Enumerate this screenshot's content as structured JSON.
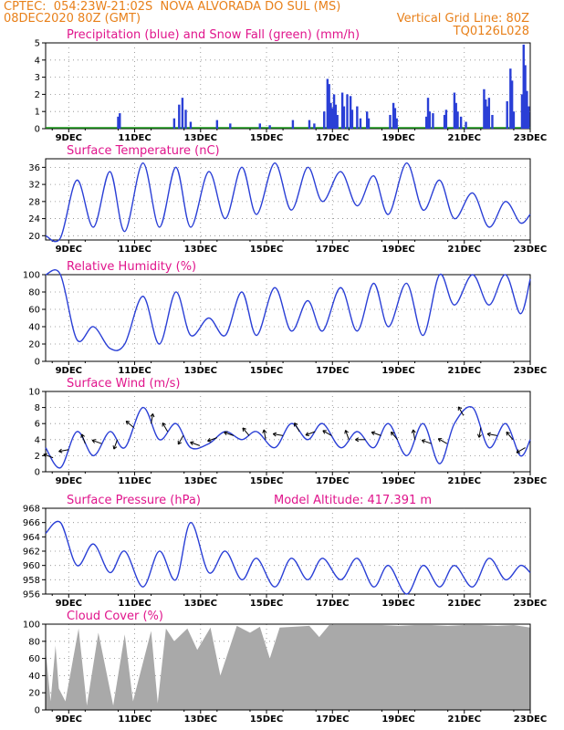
{
  "header": {
    "line1_left": "CPTEC:  054:23W-21:02S  NOVA ALVORADA DO SUL (MS)",
    "line2_left": "08DEC2020 80Z (GMT)",
    "line2_right": "Vertical Grid Line: 80Z",
    "line3_right": "TQ0126L028"
  },
  "colors": {
    "header": "#e8801a",
    "title": "#e0158c",
    "line": "#2a3fd6",
    "snow": "#1a9a1a",
    "cloud": "#a9a9a9",
    "grid": "#888888"
  },
  "chart_data": [
    {
      "type": "bar",
      "title": "Precipitation (blue) and Snow Fall (green) (mm/h)",
      "x_ticks": [
        "9DEC",
        "11DEC",
        "13DEC",
        "15DEC",
        "17DEC",
        "19DEC",
        "21DEC",
        "23DEC"
      ],
      "ylim": [
        0,
        5
      ],
      "y_ticks": [
        0,
        1,
        2,
        3,
        4,
        5
      ],
      "series": [
        {
          "name": "Precipitation",
          "values": [
            [
              10.5,
              0.7
            ],
            [
              10.55,
              0.9
            ],
            [
              12.2,
              0.6
            ],
            [
              12.35,
              1.4
            ],
            [
              12.45,
              1.8
            ],
            [
              12.55,
              1.1
            ],
            [
              12.7,
              0.4
            ],
            [
              13.5,
              0.5
            ],
            [
              13.9,
              0.3
            ],
            [
              14.8,
              0.3
            ],
            [
              15.1,
              0.2
            ],
            [
              15.8,
              0.5
            ],
            [
              16.3,
              0.5
            ],
            [
              16.45,
              0.3
            ],
            [
              16.75,
              1.0
            ],
            [
              16.85,
              2.9
            ],
            [
              16.9,
              2.6
            ],
            [
              16.95,
              1.5
            ],
            [
              17.0,
              1.2
            ],
            [
              17.05,
              2.0
            ],
            [
              17.1,
              1.4
            ],
            [
              17.15,
              0.8
            ],
            [
              17.3,
              2.1
            ],
            [
              17.35,
              1.3
            ],
            [
              17.45,
              2.0
            ],
            [
              17.55,
              1.9
            ],
            [
              17.6,
              1.1
            ],
            [
              17.75,
              1.3
            ],
            [
              17.85,
              0.6
            ],
            [
              18.05,
              1.0
            ],
            [
              18.1,
              0.6
            ],
            [
              18.75,
              0.8
            ],
            [
              18.85,
              1.5
            ],
            [
              18.9,
              1.2
            ],
            [
              18.95,
              0.6
            ],
            [
              19.85,
              0.7
            ],
            [
              19.9,
              1.8
            ],
            [
              19.95,
              1.0
            ],
            [
              20.05,
              0.9
            ],
            [
              20.4,
              0.8
            ],
            [
              20.45,
              1.1
            ],
            [
              20.7,
              2.1
            ],
            [
              20.75,
              1.5
            ],
            [
              20.8,
              1.0
            ],
            [
              20.9,
              0.7
            ],
            [
              21.05,
              0.4
            ],
            [
              21.6,
              2.3
            ],
            [
              21.65,
              1.7
            ],
            [
              21.7,
              1.3
            ],
            [
              21.75,
              1.8
            ],
            [
              21.85,
              0.8
            ],
            [
              22.3,
              1.6
            ],
            [
              22.4,
              3.5
            ],
            [
              22.45,
              2.8
            ],
            [
              22.5,
              1.0
            ],
            [
              22.75,
              2.0
            ],
            [
              22.8,
              4.9
            ],
            [
              22.85,
              3.7
            ],
            [
              22.9,
              2.2
            ],
            [
              22.95,
              1.3
            ]
          ]
        },
        {
          "name": "Snow Fall",
          "values": []
        }
      ]
    },
    {
      "type": "line",
      "title": "Surface Temperature (nC)",
      "x_ticks": [
        "9DEC",
        "11DEC",
        "13DEC",
        "15DEC",
        "17DEC",
        "19DEC",
        "21DEC",
        "23DEC"
      ],
      "ylim": [
        19,
        38
      ],
      "y_ticks": [
        20,
        24,
        28,
        32,
        36
      ],
      "x": [
        8.3,
        8.75,
        9.25,
        9.75,
        10.25,
        10.7,
        11.25,
        11.75,
        12.25,
        12.7,
        13.25,
        13.75,
        14.25,
        14.7,
        15.25,
        15.75,
        16.25,
        16.7,
        17.25,
        17.75,
        18.25,
        18.7,
        19.25,
        19.75,
        20.25,
        20.7,
        21.25,
        21.75,
        22.25,
        22.7,
        23.0
      ],
      "values": [
        20,
        19.5,
        33,
        22,
        35,
        21,
        37,
        22,
        36,
        22,
        35,
        24,
        36,
        25,
        37,
        26,
        36,
        28,
        35,
        27,
        34,
        25,
        37,
        26,
        33,
        24,
        30,
        22,
        28,
        23,
        25
      ]
    },
    {
      "type": "line",
      "title": "Relative Humidity (%)",
      "x_ticks": [
        "9DEC",
        "11DEC",
        "13DEC",
        "15DEC",
        "17DEC",
        "19DEC",
        "21DEC",
        "23DEC"
      ],
      "ylim": [
        0,
        100
      ],
      "y_ticks": [
        0,
        20,
        40,
        60,
        80,
        100
      ],
      "x": [
        8.3,
        8.75,
        9.25,
        9.75,
        10.25,
        10.7,
        11.25,
        11.75,
        12.25,
        12.7,
        13.25,
        13.75,
        14.25,
        14.7,
        15.25,
        15.75,
        16.25,
        16.7,
        17.25,
        17.75,
        18.25,
        18.7,
        19.25,
        19.75,
        20.25,
        20.7,
        21.25,
        21.75,
        22.25,
        22.7,
        23.0
      ],
      "values": [
        100,
        100,
        25,
        40,
        15,
        20,
        75,
        20,
        80,
        30,
        50,
        30,
        80,
        30,
        85,
        35,
        70,
        35,
        85,
        35,
        90,
        40,
        90,
        30,
        100,
        65,
        100,
        65,
        100,
        55,
        95
      ]
    },
    {
      "type": "line",
      "title": "Surface Wind (m/s)",
      "x_ticks": [
        "9DEC",
        "11DEC",
        "13DEC",
        "15DEC",
        "17DEC",
        "19DEC",
        "21DEC",
        "23DEC"
      ],
      "ylim": [
        0,
        10
      ],
      "y_ticks": [
        0,
        2,
        4,
        6,
        8,
        10
      ],
      "x": [
        8.3,
        8.75,
        9.25,
        9.75,
        10.25,
        10.7,
        11.25,
        11.75,
        12.25,
        12.7,
        13.25,
        13.75,
        14.25,
        14.7,
        15.25,
        15.75,
        16.25,
        16.7,
        17.25,
        17.75,
        18.25,
        18.7,
        19.25,
        19.75,
        20.25,
        20.7,
        21.25,
        21.75,
        22.25,
        22.7,
        23.0
      ],
      "values": [
        3,
        0.5,
        5,
        2,
        5,
        3,
        8,
        4,
        6,
        3,
        3.5,
        5,
        4,
        5,
        3,
        6,
        4,
        6,
        3,
        5,
        3,
        6,
        2,
        6,
        1,
        6,
        8,
        3,
        6,
        2,
        4
      ]
    },
    {
      "type": "line",
      "title": "Surface Pressure (hPa)",
      "annotation": "Model Altitude: 417.391 m",
      "x_ticks": [
        "9DEC",
        "11DEC",
        "13DEC",
        "15DEC",
        "17DEC",
        "19DEC",
        "21DEC",
        "23DEC"
      ],
      "ylim": [
        956,
        968
      ],
      "y_ticks": [
        956,
        958,
        960,
        962,
        964,
        966,
        968
      ],
      "x": [
        8.3,
        8.75,
        9.25,
        9.75,
        10.25,
        10.7,
        11.25,
        11.75,
        12.25,
        12.7,
        13.25,
        13.75,
        14.25,
        14.7,
        15.25,
        15.75,
        16.25,
        16.7,
        17.25,
        17.75,
        18.25,
        18.7,
        19.25,
        19.75,
        20.25,
        20.7,
        21.25,
        21.75,
        22.25,
        22.7,
        23.0
      ],
      "values": [
        964.5,
        966,
        960,
        963,
        959,
        962,
        957,
        962,
        958,
        966,
        959,
        962,
        958,
        961,
        957,
        961,
        958,
        961,
        958,
        961,
        957,
        960,
        956,
        960,
        957,
        960,
        957,
        961,
        958,
        960,
        959
      ]
    },
    {
      "type": "area",
      "title": "Cloud Cover (%)",
      "x_ticks": [
        "9DEC",
        "11DEC",
        "13DEC",
        "15DEC",
        "17DEC",
        "19DEC",
        "21DEC",
        "23DEC"
      ],
      "ylim": [
        0,
        100
      ],
      "y_ticks": [
        0,
        20,
        40,
        60,
        80,
        100
      ],
      "x": [
        8.3,
        8.45,
        8.6,
        8.7,
        8.9,
        9.3,
        9.55,
        9.9,
        10.35,
        10.7,
        10.95,
        11.5,
        11.7,
        11.95,
        12.2,
        12.6,
        12.9,
        13.3,
        13.6,
        14.1,
        14.5,
        14.8,
        15.1,
        15.4,
        16.3,
        16.6,
        16.9,
        17.5,
        18.0,
        18.5,
        19.0,
        19.5,
        20.0,
        20.5,
        21.0,
        21.5,
        22.0,
        22.5,
        23.0
      ],
      "values": [
        70,
        10,
        75,
        25,
        10,
        95,
        5,
        90,
        5,
        88,
        10,
        92,
        8,
        95,
        80,
        95,
        70,
        96,
        40,
        98,
        90,
        97,
        60,
        96,
        98,
        85,
        99,
        99,
        99,
        99,
        98,
        99,
        99,
        98,
        99,
        99,
        98,
        99,
        96
      ]
    }
  ]
}
